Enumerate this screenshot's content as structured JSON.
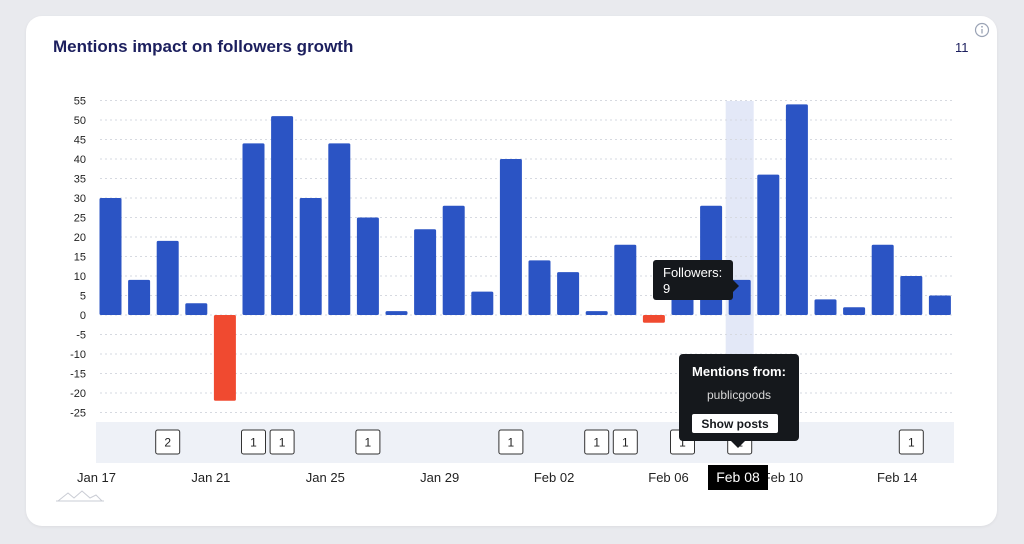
{
  "card": {
    "title": "Mentions impact on followers growth",
    "count": "11"
  },
  "colors": {
    "positive": "#2b54c4",
    "negative": "#f04a30",
    "highlight": "#e3e8f7",
    "mentions_band": "#eef1f7",
    "tooltip_bg": "#15181c",
    "title": "#1c1f5e"
  },
  "icons": {
    "info": "info-icon",
    "logo": "mountain-logo-icon"
  },
  "chart_data": {
    "type": "bar",
    "title": "Mentions impact on followers growth",
    "categories": [
      "Jan 17",
      "Jan 18",
      "Jan 19",
      "Jan 20",
      "Jan 21",
      "Jan 22",
      "Jan 23",
      "Jan 24",
      "Jan 25",
      "Jan 26",
      "Jan 27",
      "Jan 28",
      "Jan 29",
      "Jan 30",
      "Jan 31",
      "Feb 01",
      "Feb 02",
      "Feb 03",
      "Feb 04",
      "Feb 05",
      "Feb 06",
      "Feb 07",
      "Feb 08",
      "Feb 09",
      "Feb 10",
      "Feb 11",
      "Feb 12",
      "Feb 13",
      "Feb 14",
      "Feb 15"
    ],
    "values": [
      30,
      9,
      19,
      3,
      -22,
      44,
      51,
      30,
      44,
      25,
      1,
      22,
      28,
      6,
      40,
      14,
      11,
      1,
      18,
      -2,
      8,
      28,
      9,
      36,
      54,
      4,
      2,
      18,
      10,
      5
    ],
    "x_tick_labels": [
      "Jan 17",
      "Jan 21",
      "Jan 25",
      "Jan 29",
      "Feb 02",
      "Feb 06",
      "Feb 10",
      "Feb 14"
    ],
    "x_tick_indices": [
      0,
      4,
      8,
      12,
      16,
      20,
      24,
      28
    ],
    "y_ticks": [
      55,
      50,
      45,
      40,
      35,
      30,
      25,
      20,
      15,
      10,
      5,
      0,
      -5,
      -10,
      -15,
      -20,
      -25
    ],
    "ylim": [
      -27,
      55
    ],
    "grid": true,
    "highlight_index": 22,
    "mentions": [
      {
        "index": 2,
        "count": "2"
      },
      {
        "index": 5,
        "count": "1"
      },
      {
        "index": 6,
        "count": "1"
      },
      {
        "index": 9,
        "count": "1"
      },
      {
        "index": 14,
        "count": "1"
      },
      {
        "index": 17,
        "count": "1"
      },
      {
        "index": 18,
        "count": "1"
      },
      {
        "index": 20,
        "count": "1"
      },
      {
        "index": 22,
        "count": "1"
      },
      {
        "index": 28,
        "count": "1"
      }
    ]
  },
  "tooltip_followers": {
    "label": "Followers:",
    "value": "9"
  },
  "tooltip_mentions": {
    "title": "Mentions from:",
    "source": "publicgoods",
    "button_label": "Show posts"
  },
  "selected_date": "Feb 08"
}
